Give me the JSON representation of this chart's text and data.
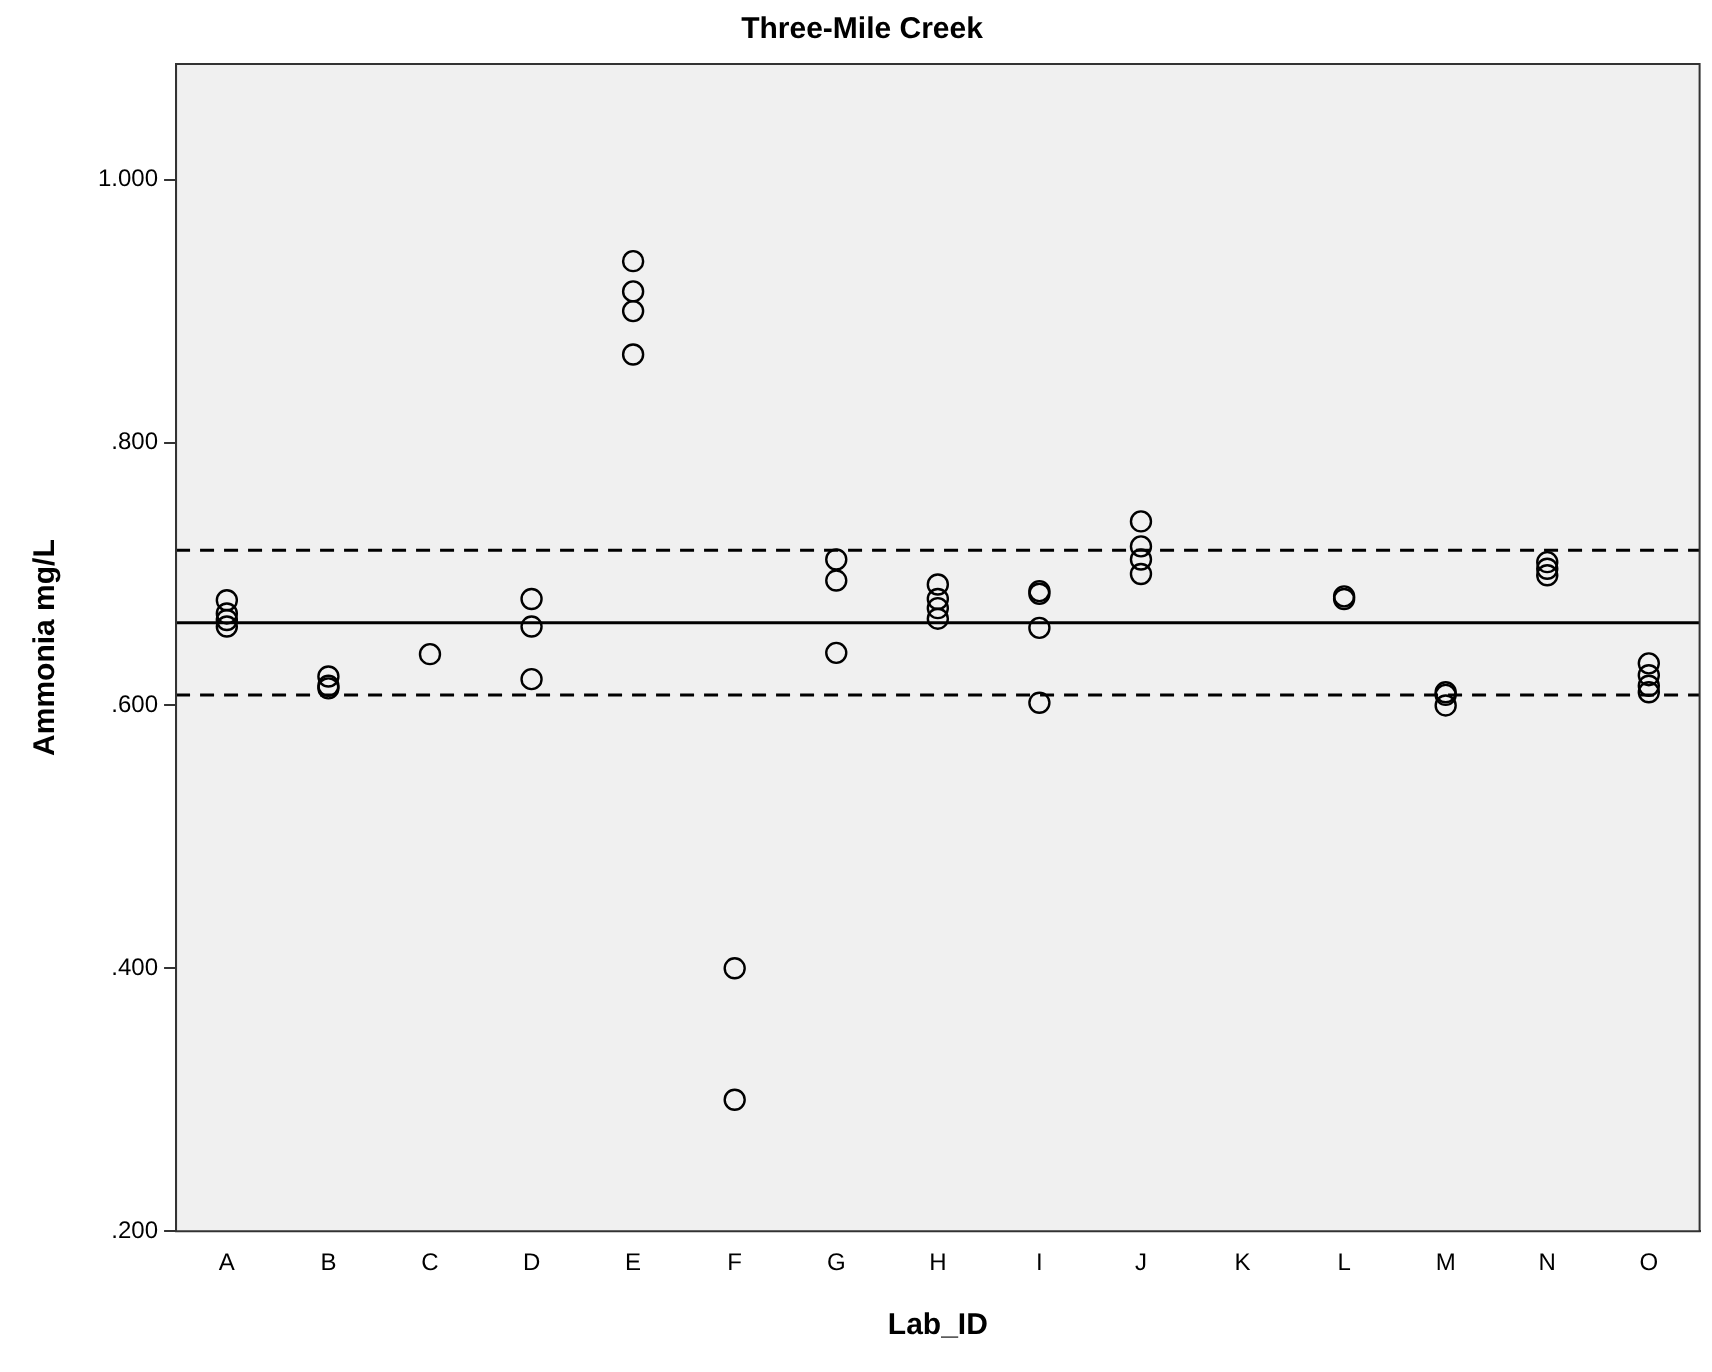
{
  "chart_data": {
    "type": "scatter",
    "title": "Three-Mile Creek",
    "xlabel": "Lab_ID",
    "ylabel": "Ammonia mg/L",
    "categories": [
      "A",
      "B",
      "C",
      "D",
      "E",
      "F",
      "G",
      "H",
      "I",
      "J",
      "K",
      "L",
      "M",
      "N",
      "O"
    ],
    "series": [
      {
        "color": "#000000",
        "x": [
          "A",
          "A",
          "A",
          "A",
          "B",
          "B",
          "B",
          "C",
          "D",
          "D",
          "D",
          "E",
          "E",
          "E",
          "E",
          "F",
          "F",
          "G",
          "G",
          "G",
          "H",
          "H",
          "H",
          "H",
          "I",
          "I",
          "I",
          "I",
          "J",
          "J",
          "J",
          "J",
          "L",
          "L",
          "M",
          "M",
          "M",
          "N",
          "N",
          "N",
          "O",
          "O",
          "O",
          "O"
        ],
        "values": [
          0.68,
          0.67,
          0.665,
          0.66,
          0.622,
          0.615,
          0.613,
          0.639,
          0.681,
          0.66,
          0.62,
          0.938,
          0.915,
          0.9,
          0.867,
          0.4,
          0.3,
          0.711,
          0.695,
          0.64,
          0.692,
          0.681,
          0.674,
          0.666,
          0.687,
          0.685,
          0.659,
          0.602,
          0.74,
          0.721,
          0.711,
          0.7,
          0.683,
          0.681,
          0.61,
          0.608,
          0.6,
          0.709,
          0.704,
          0.699,
          0.632,
          0.623,
          0.615,
          0.61
        ]
      }
    ],
    "ylim": [
      0.2,
      1.088
    ],
    "yticks": [
      {
        "value": 0.2,
        "label": ".200"
      },
      {
        "value": 0.4,
        "label": ".400"
      },
      {
        "value": 0.6,
        "label": ".600"
      },
      {
        "value": 0.8,
        "label": ".800"
      },
      {
        "value": 1.0,
        "label": "1.000"
      }
    ],
    "ref_lines": [
      {
        "axis": "y",
        "value": 0.663,
        "color": "#000000",
        "line_style": "solid"
      },
      {
        "axis": "y",
        "value": 0.718,
        "color": "#000000",
        "line_style": "dashed"
      },
      {
        "axis": "y",
        "value": 0.608,
        "color": "#000000",
        "line_style": "dashed"
      }
    ],
    "grid": false,
    "legend": false,
    "marker": "circle"
  }
}
